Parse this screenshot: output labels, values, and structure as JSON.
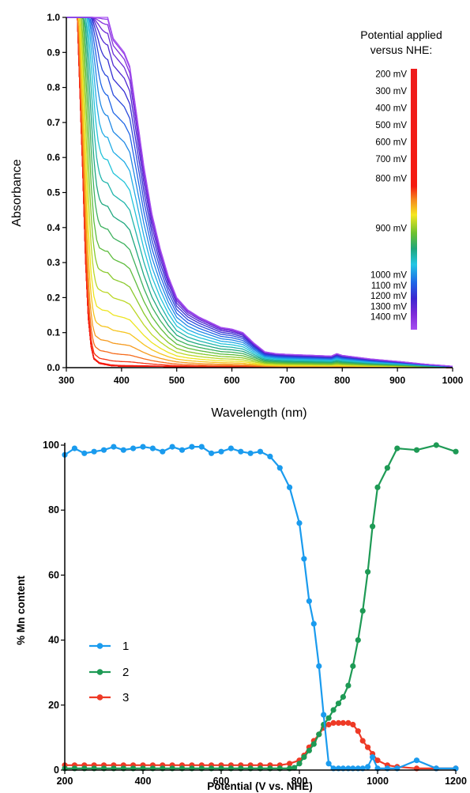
{
  "chart_data": [
    {
      "type": "line",
      "title": "",
      "xlabel": "Wavelength (nm)",
      "ylabel": "Absorbance",
      "xlim": [
        300,
        1000
      ],
      "ylim": [
        0,
        1.0
      ],
      "x_ticks": [
        "300",
        "400",
        "500",
        "600",
        "700",
        "800",
        "900",
        "1000"
      ],
      "y_ticks": [
        "0.0",
        "0.1",
        "0.2",
        "0.3",
        "0.4",
        "0.5",
        "0.6",
        "0.7",
        "0.8",
        "0.9",
        "1.0"
      ],
      "legend": {
        "title_lines": [
          "Potential applied",
          "versus NHE:"
        ],
        "placement": "top-right",
        "colorbar_range_mV": [
          200,
          1400
        ],
        "labels": [
          "200 mV",
          "300 mV",
          "400 mV",
          "500 mV",
          "600 mV",
          "700 mV",
          "800 mV",
          "900 mV",
          "1000 mV",
          "1100 mV",
          "1200 mV",
          "1300 mV",
          "1400 mV"
        ],
        "label_values_mV": [
          200,
          300,
          400,
          500,
          600,
          700,
          800,
          900,
          1000,
          1100,
          1200,
          1300,
          1400
        ]
      },
      "series_description_values": {
        "potential_mV_start": 200,
        "potential_mV_end": 1400,
        "spectra_count": 40,
        "base_x": [
          300,
          320,
          330,
          335,
          340,
          345,
          350,
          360,
          380,
          400,
          420,
          450,
          500,
          550,
          600,
          650,
          700,
          800,
          900,
          1000
        ],
        "base_y": [
          1.0,
          1.0,
          0.55,
          0.3,
          0.14,
          0.06,
          0.025,
          0.012,
          0.006,
          0.004,
          0.004,
          0.004,
          0.003,
          0.002,
          0.002,
          0.002,
          0.001,
          0.001,
          0.001,
          0.0
        ],
        "final_x": [
          300,
          360,
          375,
          385,
          395,
          405,
          415,
          425,
          440,
          455,
          470,
          485,
          500,
          520,
          540,
          560,
          580,
          600,
          620,
          640,
          660,
          680,
          700,
          750,
          780,
          790,
          800,
          850,
          900,
          950,
          1000
        ],
        "final_y": [
          1.0,
          1.0,
          1.0,
          0.94,
          0.92,
          0.9,
          0.86,
          0.75,
          0.58,
          0.44,
          0.34,
          0.26,
          0.2,
          0.165,
          0.145,
          0.13,
          0.115,
          0.11,
          0.1,
          0.07,
          0.045,
          0.04,
          0.038,
          0.035,
          0.033,
          0.04,
          0.035,
          0.025,
          0.018,
          0.01,
          0.004
        ],
        "mid_x": [
          300,
          355,
          370,
          385,
          400,
          415,
          430,
          445,
          460,
          470,
          480,
          490,
          500,
          520,
          540,
          560,
          580,
          600,
          620,
          650,
          700,
          800,
          900,
          1000
        ],
        "mid_y": [
          1.0,
          1.0,
          0.8,
          0.62,
          0.52,
          0.46,
          0.42,
          0.39,
          0.36,
          0.33,
          0.3,
          0.27,
          0.24,
          0.19,
          0.15,
          0.12,
          0.1,
          0.09,
          0.08,
          0.055,
          0.035,
          0.025,
          0.012,
          0.003
        ]
      }
    },
    {
      "type": "line",
      "title": "",
      "xlabel": "Potential (V vs. NHE)",
      "ylabel": "% Mn content",
      "xlim": [
        200,
        1200
      ],
      "ylim": [
        0,
        100
      ],
      "x_ticks": [
        "200",
        "400",
        "600",
        "800",
        "1000",
        "1200"
      ],
      "y_ticks": [
        "0",
        "20",
        "40",
        "60",
        "80",
        "100"
      ],
      "legend_placement": "bottom-left",
      "series": [
        {
          "name": "1",
          "color": "#1a9bee",
          "x": [
            200,
            225,
            250,
            275,
            300,
            325,
            350,
            375,
            400,
            425,
            450,
            475,
            500,
            525,
            550,
            575,
            600,
            625,
            650,
            675,
            700,
            725,
            750,
            775,
            800,
            812,
            825,
            837,
            850,
            862,
            875,
            887,
            900,
            912,
            925,
            937,
            950,
            962,
            975,
            987,
            1000,
            1025,
            1050,
            1100,
            1150,
            1200
          ],
          "y": [
            97,
            99,
            97.5,
            98,
            98.5,
            99.5,
            98.5,
            99,
            99.5,
            99,
            98,
            99.5,
            98.5,
            99.5,
            99.5,
            97.5,
            98,
            99,
            98,
            97.5,
            98,
            96.5,
            93,
            87,
            76,
            65,
            52,
            45,
            32,
            17,
            2,
            0.5,
            0.5,
            0.5,
            0.5,
            0.5,
            0.5,
            0.5,
            1,
            4,
            0.5,
            0.5,
            0.5,
            3,
            0.5,
            0.5
          ]
        },
        {
          "name": "2",
          "color": "#1e9a55",
          "x": [
            200,
            225,
            250,
            275,
            300,
            325,
            350,
            375,
            400,
            425,
            450,
            475,
            500,
            525,
            550,
            575,
            600,
            625,
            650,
            675,
            700,
            725,
            750,
            775,
            787,
            800,
            812,
            825,
            837,
            850,
            862,
            875,
            887,
            900,
            912,
            925,
            937,
            950,
            962,
            975,
            987,
            1000,
            1025,
            1050,
            1100,
            1150,
            1200
          ],
          "y": [
            0.5,
            0.5,
            0.5,
            0.5,
            0.5,
            0.5,
            0.5,
            0.5,
            0.5,
            0.5,
            0.5,
            0.5,
            0.5,
            0.5,
            0.5,
            0.5,
            0.5,
            0.5,
            0.5,
            0.5,
            0.5,
            0.5,
            0.5,
            0.5,
            0.7,
            2,
            4,
            6,
            8,
            11,
            14,
            16,
            18.5,
            20.5,
            22.5,
            26,
            32,
            40,
            49,
            61,
            75,
            87,
            93,
            99,
            98.5,
            100,
            98
          ]
        },
        {
          "name": "3",
          "color": "#ee3a26",
          "x": [
            200,
            225,
            250,
            275,
            300,
            325,
            350,
            375,
            400,
            425,
            450,
            475,
            500,
            525,
            550,
            575,
            600,
            625,
            650,
            675,
            700,
            725,
            750,
            775,
            800,
            812,
            825,
            837,
            850,
            862,
            875,
            887,
            900,
            912,
            925,
            937,
            950,
            962,
            975,
            987,
            1000,
            1025,
            1050,
            1100,
            1150,
            1200
          ],
          "y": [
            1.5,
            1.5,
            1.5,
            1.5,
            1.5,
            1.5,
            1.5,
            1.5,
            1.5,
            1.5,
            1.5,
            1.5,
            1.5,
            1.5,
            1.5,
            1.5,
            1.5,
            1.5,
            1.5,
            1.5,
            1.5,
            1.5,
            1.5,
            2,
            3,
            4.5,
            7,
            9,
            11,
            13,
            14,
            14.5,
            14.5,
            14.5,
            14.5,
            14,
            12,
            9,
            7,
            5,
            3,
            1.5,
            1,
            0.5,
            0.5,
            0.5
          ]
        }
      ]
    }
  ]
}
